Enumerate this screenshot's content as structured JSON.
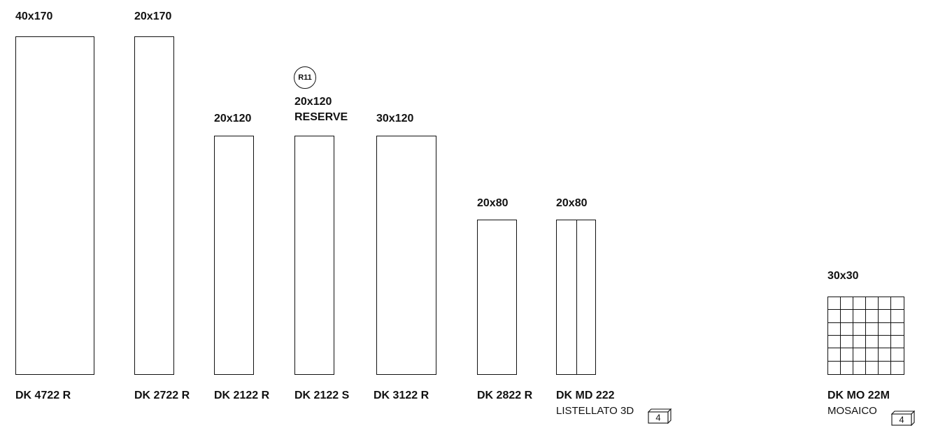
{
  "products": [
    {
      "size": "40x170",
      "code": "DK 4722 R"
    },
    {
      "size": "20x170",
      "code": "DK 2722 R"
    },
    {
      "size": "20x120",
      "code": "DK 2122 R"
    },
    {
      "size_line1": "20x120",
      "size_line2": "RESERVE",
      "badge": "R11",
      "code": "DK 2122 S"
    },
    {
      "size": "30x120",
      "code": "DK 3122 R"
    },
    {
      "size": "20x80",
      "code": "DK 2822 R"
    },
    {
      "size": "20x80",
      "code": "DK MD 222",
      "subtitle": "LISTELLATO 3D",
      "box_count": "4"
    },
    {
      "size": "30x30",
      "code": "DK MO 22M",
      "subtitle": "MOSAICO",
      "box_count": "4"
    }
  ]
}
